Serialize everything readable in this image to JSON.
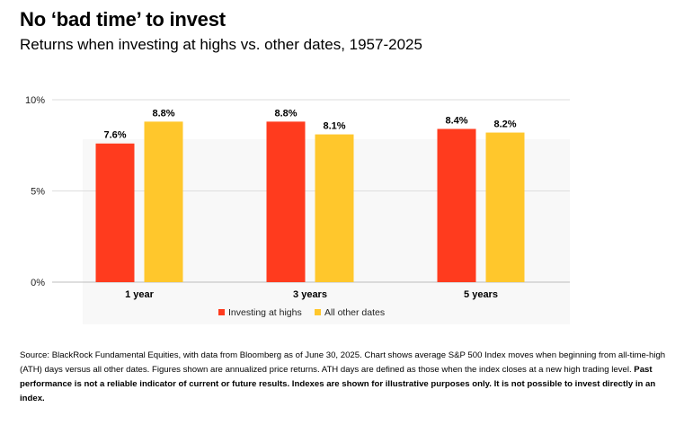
{
  "title": "No ‘bad time’ to invest",
  "subtitle": "Returns when investing at highs vs. other dates, 1957-2025",
  "chart_data": {
    "type": "bar",
    "categories": [
      "1 year",
      "3 years",
      "5 years"
    ],
    "series": [
      {
        "name": "Investing at highs",
        "color": "#FF3B1E",
        "values": [
          7.6,
          8.8,
          8.4
        ],
        "labels": [
          "7.6%",
          "8.8%",
          "8.4%"
        ]
      },
      {
        "name": "All other dates",
        "color": "#FFC72C",
        "values": [
          8.8,
          8.1,
          8.2
        ],
        "labels": [
          "8.8%",
          "8.1%",
          "8.2%"
        ]
      }
    ],
    "ylim": [
      0,
      10
    ],
    "yticks": [
      0,
      5,
      10
    ],
    "ytick_labels": [
      "0%",
      "5%",
      "10%"
    ],
    "legend_position": "bottom-center",
    "xlabel": "",
    "ylabel": ""
  },
  "footnote": {
    "normal": "Source: BlackRock Fundamental Equities, with data from Bloomberg as of June 30, 2025. Chart shows average S&P 500 Index moves when beginning from all-time-high (ATH) days versus all other dates. Figures shown are annualized price returns. ATH days are defined as those when the index closes at a new high trading level. ",
    "bold": "Past performance is not a reliable indicator of current or future results. Indexes are shown for illustrative purposes only. It is not possible to invest directly in an index."
  }
}
